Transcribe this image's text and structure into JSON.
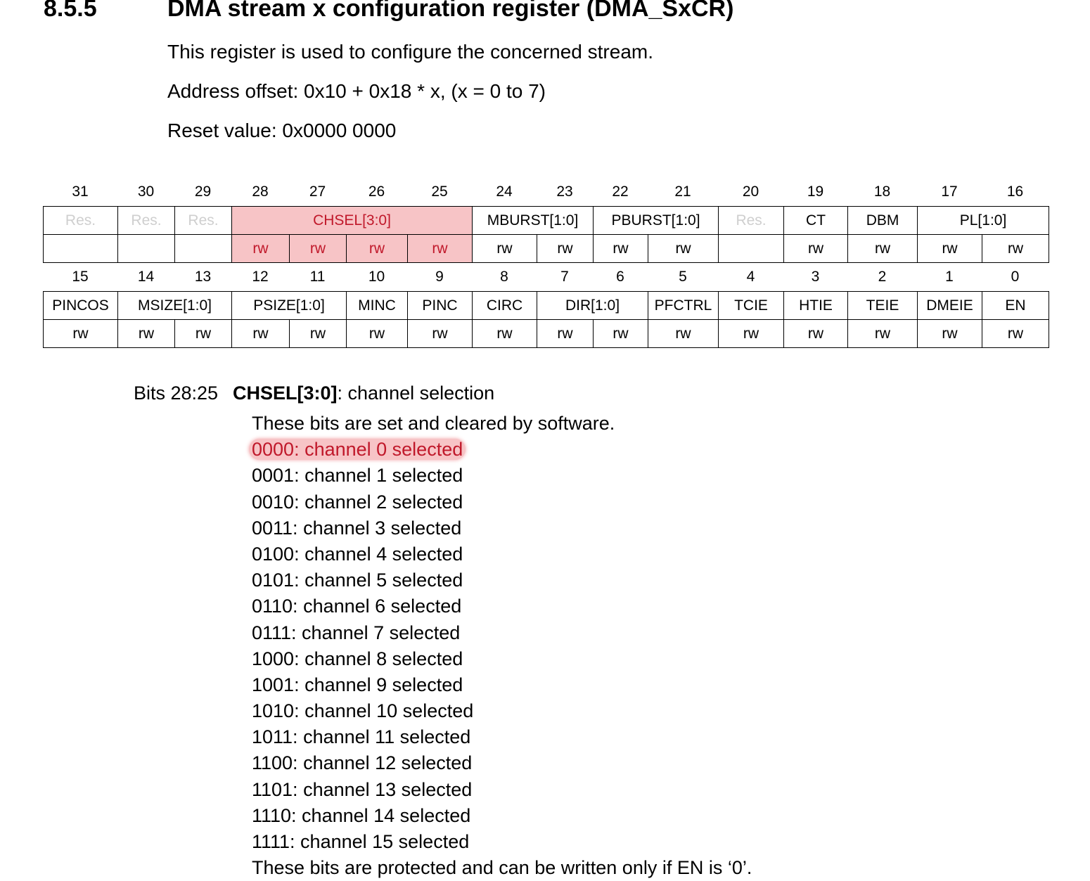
{
  "section": {
    "number": "8.5.5",
    "title": "DMA stream x configuration register (DMA_SxCR)"
  },
  "intro": {
    "description": "This register is used to configure the concerned stream.",
    "address_offset": "Address offset: 0x10 + 0x18 * x, (x = 0 to 7)",
    "reset_value": "Reset value: 0x0000 0000"
  },
  "register": {
    "upper": {
      "bit_numbers": [
        "31",
        "30",
        "29",
        "28",
        "27",
        "26",
        "25",
        "24",
        "23",
        "22",
        "21",
        "20",
        "19",
        "18",
        "17",
        "16"
      ],
      "fields": [
        {
          "label": "Res.",
          "span": 1,
          "reserved": true
        },
        {
          "label": "Res.",
          "span": 1,
          "reserved": true
        },
        {
          "label": "Res.",
          "span": 1,
          "reserved": true
        },
        {
          "label": "CHSEL[3:0]",
          "span": 4,
          "highlight": true
        },
        {
          "label": "MBURST[1:0]",
          "span": 2
        },
        {
          "label": "PBURST[1:0]",
          "span": 2
        },
        {
          "label": "Res.",
          "span": 1,
          "reserved": true
        },
        {
          "label": "CT",
          "span": 1
        },
        {
          "label": "DBM",
          "span": 1
        },
        {
          "label": "PL[1:0]",
          "span": 2
        }
      ],
      "access": [
        "",
        "",
        "",
        "rw",
        "rw",
        "rw",
        "rw",
        "rw",
        "rw",
        "rw",
        "rw",
        "",
        "rw",
        "rw",
        "rw",
        "rw"
      ]
    },
    "lower": {
      "bit_numbers": [
        "15",
        "14",
        "13",
        "12",
        "11",
        "10",
        "9",
        "8",
        "7",
        "6",
        "5",
        "4",
        "3",
        "2",
        "1",
        "0"
      ],
      "fields": [
        {
          "label": "PINCOS",
          "span": 1
        },
        {
          "label": "MSIZE[1:0]",
          "span": 2
        },
        {
          "label": "PSIZE[1:0]",
          "span": 2
        },
        {
          "label": "MINC",
          "span": 1
        },
        {
          "label": "PINC",
          "span": 1
        },
        {
          "label": "CIRC",
          "span": 1
        },
        {
          "label": "DIR[1:0]",
          "span": 2
        },
        {
          "label": "PFCTRL",
          "span": 1
        },
        {
          "label": "TCIE",
          "span": 1
        },
        {
          "label": "HTIE",
          "span": 1
        },
        {
          "label": "TEIE",
          "span": 1
        },
        {
          "label": "DMEIE",
          "span": 1
        },
        {
          "label": "EN",
          "span": 1
        }
      ],
      "access": [
        "rw",
        "rw",
        "rw",
        "rw",
        "rw",
        "rw",
        "rw",
        "rw",
        "rw",
        "rw",
        "rw",
        "rw",
        "rw",
        "rw",
        "rw",
        "rw"
      ]
    }
  },
  "field_description": {
    "bits": "Bits 28:25",
    "field": "CHSEL[3:0]",
    "field_suffix": ": channel selection",
    "lines": [
      "These bits are set and cleared by software.",
      "0000: channel 0 selected",
      "0001: channel 1 selected",
      "0010: channel 2 selected",
      "0011: channel 3 selected",
      "0100: channel 4 selected",
      "0101: channel 5 selected",
      "0110: channel 6 selected",
      "0111: channel 7 selected",
      "1000: channel 8 selected",
      "1001: channel 9 selected",
      "1010: channel 10 selected",
      "1011: channel 11 selected",
      "1100: channel 12 selected",
      "1101: channel 13 selected",
      "1110: channel 14 selected",
      "1111: channel 15 selected",
      "These bits are protected and can be written only if EN is ‘0’."
    ],
    "highlighted_line": 1
  },
  "colors": {
    "highlight_fill": "#f7c4c6",
    "highlight_text": "#c0182a",
    "reserved_text": "#cfcfcf"
  }
}
